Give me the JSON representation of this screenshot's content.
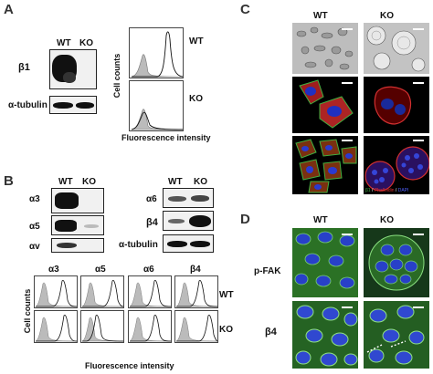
{
  "panelA": {
    "letter": "A",
    "wt": "WT",
    "ko": "KO",
    "row_beta1": "β1",
    "row_tubulin": "α-tubulin",
    "hist_wt": "WT",
    "hist_ko": "KO",
    "ylabel": "Cell counts",
    "xlabel": "Fluorescence intensity"
  },
  "panelB": {
    "letter": "B",
    "wt1": "WT",
    "ko1": "KO",
    "wt2": "WT",
    "ko2": "KO",
    "a3": "α3",
    "a5": "α5",
    "av": "αv",
    "a6": "α6",
    "b4": "β4",
    "tub": "α-tubulin",
    "h_a3": "α3",
    "h_a5": "α5",
    "h_a6": "α6",
    "h_b4": "β4",
    "row_wt": "WT",
    "row_ko": "KO",
    "ylabel": "Cell counts",
    "xlabel": "Fluorescence intensity"
  },
  "panelC": {
    "letter": "C",
    "wt": "WT",
    "ko": "KO",
    "legend_b1": "β1",
    "legend_sep1": " / ",
    "legend_phal": "Phalloidin",
    "legend_sep2": " / ",
    "legend_dapi": "DAPI",
    "colors": {
      "b1": "#40b040",
      "phal": "#e03030",
      "dapi": "#3040d0"
    }
  },
  "panelD": {
    "letter": "D",
    "wt": "WT",
    "ko": "KO",
    "row_pfak": "p-FAK",
    "row_b4": "β4"
  }
}
